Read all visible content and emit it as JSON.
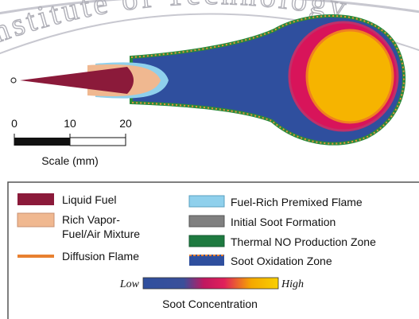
{
  "watermark": "Institute of Technology",
  "scale": {
    "ticks": [
      "0",
      "10",
      "20"
    ],
    "label": "Scale (mm)"
  },
  "legend": {
    "left": [
      {
        "label": "Liquid Fuel"
      },
      {
        "label": [
          "Rich Vapor-",
          "Fuel/Air Mixture"
        ]
      },
      {
        "label": "Diffusion Flame"
      }
    ],
    "right": [
      {
        "label": "Fuel-Rich Premixed Flame"
      },
      {
        "label": "Initial Soot Formation"
      },
      {
        "label": "Thermal NO Production Zone"
      },
      {
        "label": "Soot Oxidation Zone"
      }
    ],
    "gradient": {
      "low": "Low",
      "high": "High",
      "caption": "Soot Concentration"
    }
  }
}
